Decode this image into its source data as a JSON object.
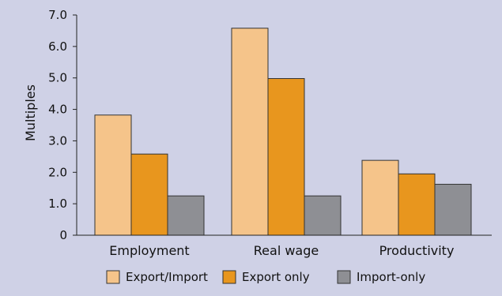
{
  "chart_data": {
    "type": "bar",
    "title": "",
    "xlabel": "",
    "ylabel": "Multiples",
    "ylim": [
      0,
      7
    ],
    "yticks": [
      0,
      1,
      2,
      3,
      4,
      5,
      6,
      7
    ],
    "ytick_labels": [
      "0",
      "1.0",
      "2.0",
      "3.0",
      "4.0",
      "5.0",
      "6.0",
      "7.0"
    ],
    "categories": [
      "Employment",
      "Real wage",
      "Productivity"
    ],
    "series": [
      {
        "name": "Export/Import",
        "color": "#f5c48a",
        "values": [
          3.82,
          6.58,
          2.38
        ]
      },
      {
        "name": "Export only",
        "color": "#e8961e",
        "values": [
          2.58,
          4.98,
          1.95
        ]
      },
      {
        "name": "Import-only",
        "color": "#8e8f94",
        "values": [
          1.25,
          1.25,
          1.62
        ]
      }
    ],
    "grid": false,
    "legend_position": "bottom"
  }
}
